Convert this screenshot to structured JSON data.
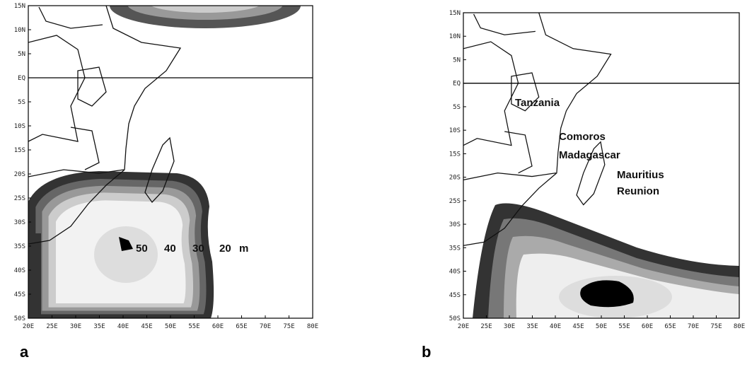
{
  "panels": [
    {
      "label": "a",
      "y_labels": [
        "15N",
        "10N",
        "5N",
        "EQ",
        "5S",
        "10S",
        "15S",
        "20S",
        "25S",
        "30S",
        "35S",
        "40S",
        "45S",
        "50S"
      ],
      "x_labels": [
        "20E",
        "25E",
        "30E",
        "35E",
        "40E",
        "45E",
        "50E",
        "55E",
        "60E",
        "65E",
        "70E",
        "75E",
        "80E"
      ],
      "annotations": [
        "50",
        "40",
        "30",
        "20",
        "m"
      ]
    },
    {
      "label": "b",
      "y_labels": [
        "15N",
        "10N",
        "5N",
        "EQ",
        "5S",
        "10S",
        "15S",
        "20S",
        "25S",
        "30S",
        "35S",
        "40S",
        "45S",
        "50S"
      ],
      "x_labels": [
        "20E",
        "25E",
        "30E",
        "35E",
        "40E",
        "45E",
        "50E",
        "55E",
        "60E",
        "65E",
        "70E",
        "75E",
        "80E"
      ],
      "annotations": [
        "Tanzania",
        "Comoros",
        "Madagascar",
        "Mauritius",
        "Reunion"
      ]
    }
  ]
}
